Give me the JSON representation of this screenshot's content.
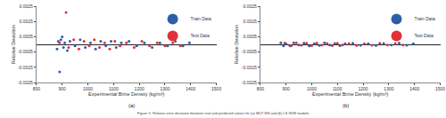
{
  "caption": "Figure 5. Relative error deviation between real and predicted values for (a) MLP-NN and (b) LS-SVM models.",
  "chart_data": [
    {
      "type": "scatter",
      "annotation": "(a)",
      "x_label": "Experimental Brine Density (kg/m³)",
      "y_label": "Relative Deviation",
      "xlim": [
        800,
        1500
      ],
      "xticks": [
        800,
        900,
        1000,
        1100,
        1200,
        1300,
        1400,
        1500
      ],
      "ylim": [
        -0.0025,
        0.0025
      ],
      "yticks": [
        -0.0025,
        -0.0015,
        -0.0005,
        0.0005,
        0.0015,
        0.0025
      ],
      "legend": "upper right",
      "marker": "circle",
      "series": [
        {
          "name": "Train Data",
          "color": "#2f5ea8",
          "x": [
            880,
            885,
            890,
            895,
            900,
            905,
            910,
            920,
            930,
            950,
            970,
            990,
            1010,
            1030,
            1050,
            1070,
            1090,
            1110,
            1130,
            1160,
            1190,
            1220,
            1250,
            1280,
            1310,
            1340,
            1370,
            1395
          ],
          "values": [
            -0.0003,
            0.0002,
            -0.0018,
            0.0003,
            0.0005,
            -0.0002,
            0.0001,
            -0.0004,
            0.0002,
            -0.0001,
            0.0003,
            -0.0002,
            0.0001,
            -0.0003,
            0.0002,
            -0.0001,
            0.0002,
            -0.0002,
            0.0001,
            0.0002,
            -0.0001,
            0.0001,
            -0.0002,
            0.0001,
            -0.0001,
            0.0002,
            -0.0001,
            0.0001
          ]
        },
        {
          "name": "Test Data",
          "color": "#e0303a",
          "x": [
            890,
            915,
            925,
            945,
            965,
            985,
            1005,
            1025,
            1045,
            1065,
            1085,
            1105,
            1125,
            1150,
            1180,
            1210,
            1240,
            1270,
            1300,
            1330,
            1360
          ],
          "values": [
            0.0001,
            0.0021,
            -0.0002,
            0.0003,
            -0.0003,
            0.0002,
            -0.0001,
            0.0003,
            -0.0002,
            0.0001,
            -0.0003,
            0.0002,
            -0.0001,
            0.0001,
            -0.0002,
            0.0002,
            -0.0001,
            0.0001,
            -0.0001,
            0.0001,
            -0.0001
          ]
        }
      ]
    },
    {
      "type": "scatter",
      "annotation": "(b)",
      "x_label": "Experimental Brine Density (kg/m³)",
      "y_label": "Relative Deviation",
      "xlim": [
        800,
        1500
      ],
      "xticks": [
        800,
        900,
        1000,
        1100,
        1200,
        1300,
        1400,
        1500
      ],
      "ylim": [
        -0.0025,
        0.0025
      ],
      "yticks": [
        -0.0025,
        -0.0015,
        -0.0005,
        0.0005,
        0.0015,
        0.0025
      ],
      "legend": "upper right",
      "marker": "circle",
      "series": [
        {
          "name": "Train Data",
          "color": "#2f5ea8",
          "x": [
            880,
            890,
            900,
            915,
            930,
            950,
            970,
            990,
            1010,
            1030,
            1050,
            1070,
            1090,
            1110,
            1130,
            1160,
            1190,
            1220,
            1250,
            1280,
            1310,
            1340,
            1370,
            1395
          ],
          "values": [
            0.0001,
            -0.0001,
            5e-05,
            -8e-05,
            0.0001,
            -5e-05,
            8e-05,
            -0.0001,
            5e-05,
            -7e-05,
            0.0001,
            -5e-05,
            6e-05,
            -8e-05,
            5e-05,
            7e-05,
            -6e-05,
            5e-05,
            -7e-05,
            6e-05,
            -5e-05,
            8e-05,
            -6e-05,
            5e-05
          ]
        },
        {
          "name": "Test Data",
          "color": "#e0303a",
          "x": [
            895,
            920,
            940,
            960,
            980,
            1000,
            1020,
            1040,
            1060,
            1080,
            1100,
            1120,
            1145,
            1175,
            1205,
            1235,
            1265,
            1295,
            1325,
            1355
          ],
          "values": [
            8e-05,
            -0.0001,
            0.0001,
            -6e-05,
            7e-05,
            -8e-05,
            9e-05,
            -5e-05,
            6e-05,
            -9e-05,
            7e-05,
            -5e-05,
            6e-05,
            -7e-05,
            5e-05,
            -6e-05,
            7e-05,
            -5e-05,
            6e-05,
            -5e-05
          ]
        }
      ]
    }
  ]
}
